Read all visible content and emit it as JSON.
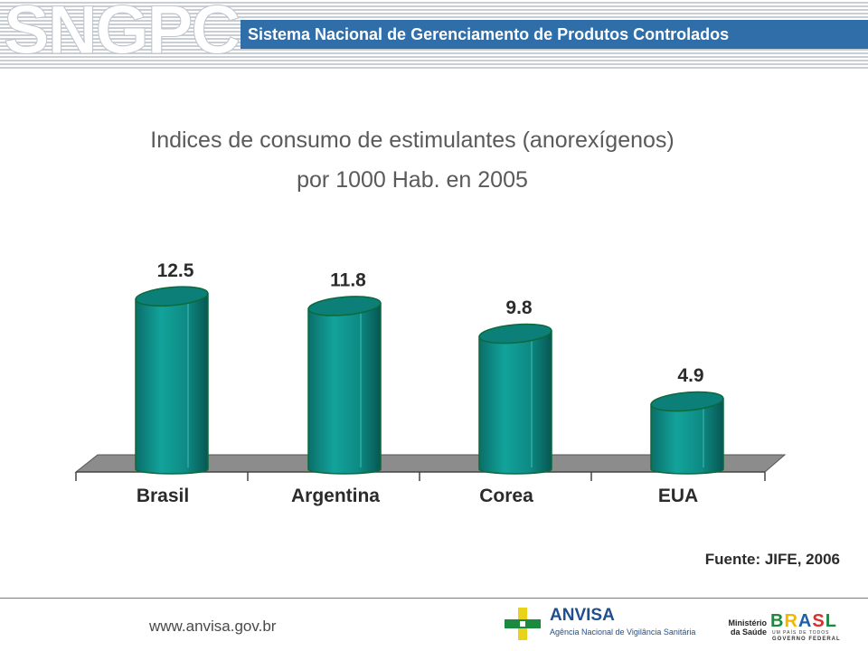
{
  "header": {
    "logo": "SNGPC",
    "title": "Sistema Nacional de Gerenciamento de Produtos Controlados"
  },
  "chart_data": {
    "type": "bar",
    "title": "Indices de consumo de estimulantes (anorexígenos)",
    "subtitle": "por 1000 Hab. en 2005",
    "categories": [
      "Brasil",
      "Argentina",
      "Corea",
      "EUA"
    ],
    "values": [
      12.5,
      11.8,
      9.8,
      4.9
    ],
    "value_labels": [
      "12.5",
      "11.8",
      "9.8",
      "4.9"
    ],
    "source": "Fuente: JIFE, 2006",
    "bar_color": "#0e8a84",
    "floor_color": "#8c8c8c",
    "style": "3d-cylinder"
  },
  "footer": {
    "url": "www.anvisa.gov.br",
    "anvisa_name": "ANVISA",
    "anvisa_subtitle": "Agência Nacional de Vigilância Sanitária",
    "ministry_line1": "Ministério",
    "ministry_line2": "da Saúde",
    "brasil_letters": [
      "B",
      "R",
      "A",
      "S",
      "L"
    ],
    "brasil_tagline": "UM PAÍS DE TODOS",
    "brasil_gov": "GOVERNO FEDERAL"
  }
}
